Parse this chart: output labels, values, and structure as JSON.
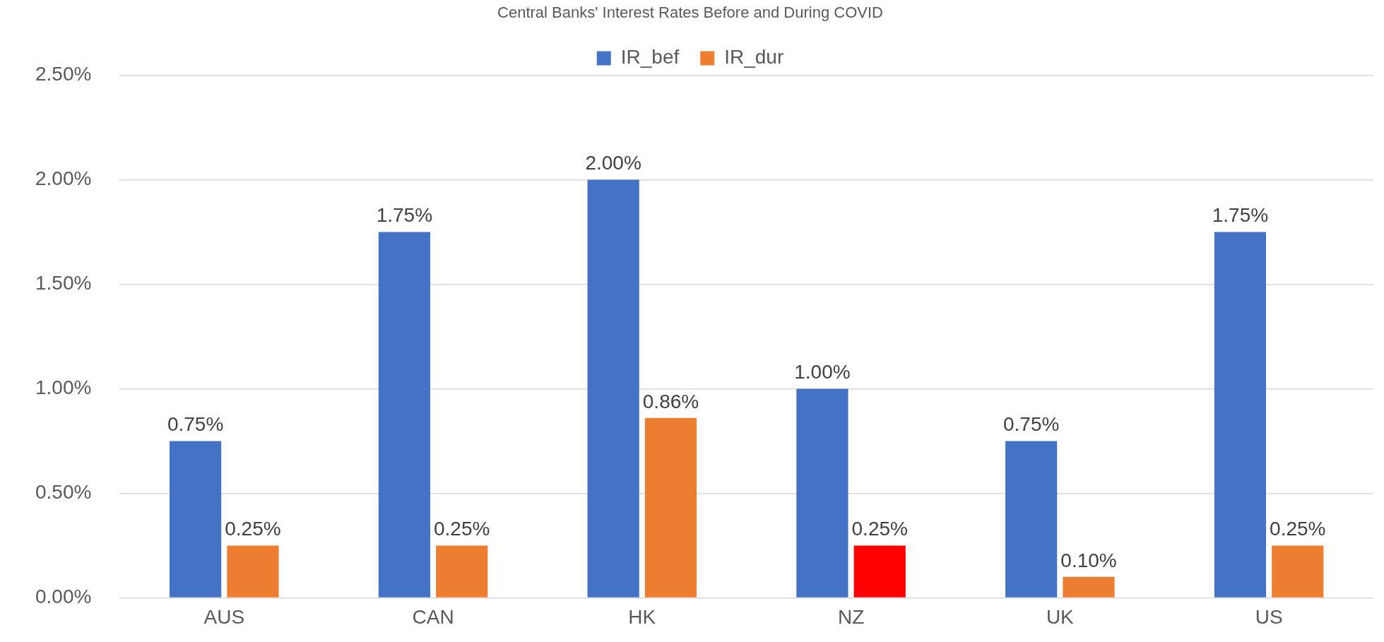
{
  "chart_data": {
    "type": "bar",
    "title": "Central Banks' Interest Rates Before and During COVID",
    "categories": [
      "AUS",
      "CAN",
      "HK",
      "NZ",
      "UK",
      "US"
    ],
    "series": [
      {
        "name": "IR_bef",
        "color": "#4472c4",
        "values": [
          0.75,
          1.75,
          2.0,
          1.0,
          0.75,
          1.75
        ],
        "value_labels": [
          "0.75%",
          "1.75%",
          "2.00%",
          "1.00%",
          "0.75%",
          "1.75%"
        ]
      },
      {
        "name": "IR_dur",
        "color": "#ed7d31",
        "colors": [
          "#ed7d31",
          "#ed7d31",
          "#ed7d31",
          "#ff0000",
          "#ed7d31",
          "#ed7d31"
        ],
        "values": [
          0.25,
          0.25,
          0.86,
          0.25,
          0.1,
          0.25
        ],
        "value_labels": [
          "0.25%",
          "0.25%",
          "0.86%",
          "0.25%",
          "0.10%",
          "0.25%"
        ]
      }
    ],
    "ylim": [
      0,
      2.5
    ],
    "yticks": [
      {
        "value": 0,
        "label": "0.00%"
      },
      {
        "value": 0.5,
        "label": "0.50%"
      },
      {
        "value": 1,
        "label": "1.00%"
      },
      {
        "value": 1.5,
        "label": "1.50%"
      },
      {
        "value": 2,
        "label": "2.00%"
      },
      {
        "value": 2.5,
        "label": "2.50%"
      }
    ],
    "grid": "y",
    "legend": "top"
  }
}
